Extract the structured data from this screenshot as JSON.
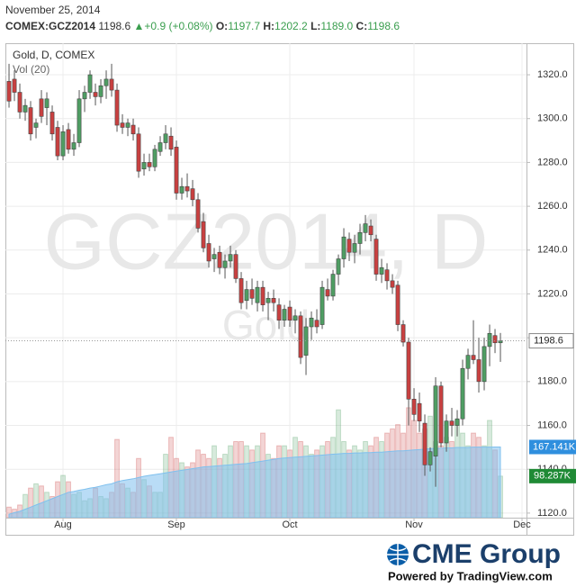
{
  "chart_data": {
    "type": "candlestick",
    "date": "November 25, 2014",
    "header": {
      "symbol": "COMEX:GCZ2014",
      "last": "1198.6",
      "change": "+0.9",
      "change_pct": "(+0.08%)",
      "quote": [
        {
          "label": "O:",
          "value": "1197.7"
        },
        {
          "label": "H:",
          "value": "1202.2"
        },
        {
          "label": "L:",
          "value": "1189.0"
        },
        {
          "label": "C:",
          "value": "1198.6"
        }
      ]
    },
    "title": "Gold, D, COMEX",
    "volume_title": "Vol (20)",
    "watermark": "GCZ2014, D",
    "watermark_sub": "Gold",
    "up_color": "#4f9e63",
    "down_color": "#c94040",
    "volume_ma_color": "#7fc0ee",
    "volume_ma_label": "167.141K",
    "volume_label": "98.287K",
    "grid": true,
    "xlim": [
      -0.67,
      95.83
    ],
    "xticks": [
      {
        "value": 10,
        "label": "Aug"
      },
      {
        "value": 31,
        "label": "Sep"
      },
      {
        "value": 52,
        "label": "Oct"
      },
      {
        "value": 75,
        "label": "Nov"
      },
      {
        "value": 95,
        "label": "Dec"
      }
    ],
    "ylim": [
      1117.9,
      1334.4
    ],
    "yticks": [
      {
        "value": 1120,
        "label": "1120.0"
      },
      {
        "value": 1140,
        "label": "1140.0"
      },
      {
        "value": 1160,
        "label": "1160.0"
      },
      {
        "value": 1180,
        "label": "1180.0"
      },
      {
        "value": 1200,
        "label": "1200.0"
      },
      {
        "value": 1220,
        "label": "1220.0"
      },
      {
        "value": 1240,
        "label": "1240.0"
      },
      {
        "value": 1260,
        "label": "1260.0"
      },
      {
        "value": 1280,
        "label": "1280.0"
      },
      {
        "value": 1300,
        "label": "1300.0"
      },
      {
        "value": 1320,
        "label": "1320.0"
      }
    ],
    "vlim": [
      0,
      330000
    ],
    "open": [
      1317,
      1318,
      1312,
      1303,
      1305,
      1296,
      1309,
      1305,
      1303,
      1296,
      1283,
      1295,
      1286,
      1289,
      1309,
      1312,
      1312,
      1310,
      1315,
      1318,
      1313,
      1298,
      1296,
      1297,
      1293,
      1277,
      1280,
      1278,
      1285,
      1289,
      1292,
      1287,
      1266,
      1269,
      1268,
      1263,
      1253,
      1243,
      1236,
      1239,
      1232,
      1235,
      1238,
      1227,
      1217,
      1222,
      1216,
      1223,
      1216,
      1218,
      1215,
      1208,
      1214,
      1208,
      1210,
      1192,
      1205,
      1208,
      1206,
      1222,
      1219,
      1229,
      1236,
      1245,
      1239,
      1243,
      1248,
      1251,
      1245,
      1229,
      1231,
      1226,
      1224,
      1206,
      1198,
      1172,
      1170,
      1161,
      1142,
      1146,
      1178,
      1152,
      1162,
      1160,
      1163,
      1186,
      1192,
      1190,
      1180,
      1196,
      1201,
      1197.7
    ],
    "high": [
      1325,
      1322,
      1316,
      1309,
      1308,
      1300,
      1313,
      1312,
      1306,
      1299,
      1297,
      1298,
      1293,
      1313,
      1315,
      1322,
      1316,
      1318,
      1322,
      1325,
      1316,
      1302,
      1300,
      1300,
      1296,
      1284,
      1284,
      1288,
      1292,
      1297,
      1296,
      1290,
      1273,
      1275,
      1272,
      1266,
      1257,
      1247,
      1241,
      1242,
      1238,
      1242,
      1240,
      1230,
      1226,
      1227,
      1226,
      1226,
      1221,
      1222,
      1218,
      1215,
      1217,
      1213,
      1212,
      1209,
      1212,
      1213,
      1226,
      1227,
      1231,
      1238,
      1250,
      1248,
      1247,
      1252,
      1256,
      1254,
      1247,
      1236,
      1234,
      1229,
      1226,
      1208,
      1200,
      1177,
      1175,
      1165,
      1150,
      1182,
      1180,
      1165,
      1168,
      1167,
      1190,
      1195,
      1208,
      1200,
      1200,
      1206,
      1204,
      1202.2
    ],
    "low": [
      1305,
      1308,
      1300,
      1299,
      1290,
      1291,
      1298,
      1297,
      1290,
      1281,
      1281,
      1284,
      1283,
      1287,
      1303,
      1309,
      1306,
      1307,
      1309,
      1310,
      1294,
      1293,
      1292,
      1290,
      1273,
      1274,
      1276,
      1276,
      1283,
      1286,
      1283,
      1263,
      1263,
      1264,
      1260,
      1248,
      1239,
      1232,
      1230,
      1229,
      1227,
      1232,
      1225,
      1213,
      1213,
      1215,
      1212,
      1212,
      1208,
      1212,
      1204,
      1205,
      1205,
      1202,
      1188,
      1183,
      1199,
      1202,
      1204,
      1217,
      1217,
      1224,
      1232,
      1235,
      1234,
      1238,
      1244,
      1244,
      1226,
      1225,
      1222,
      1220,
      1203,
      1196,
      1160,
      1162,
      1157,
      1137,
      1139,
      1132,
      1150,
      1148,
      1155,
      1155,
      1160,
      1181,
      1188,
      1175,
      1176,
      1187,
      1193,
      1189
    ],
    "close": [
      1308,
      1312,
      1303,
      1306,
      1293,
      1298,
      1301,
      1309,
      1293,
      1283,
      1294,
      1286,
      1289,
      1309,
      1312,
      1320,
      1310,
      1315,
      1318,
      1313,
      1297,
      1296,
      1298,
      1293,
      1276,
      1280,
      1278,
      1286,
      1289,
      1293,
      1286,
      1266,
      1269,
      1267,
      1263,
      1250,
      1241,
      1235,
      1238,
      1232,
      1235,
      1238,
      1227,
      1216,
      1222,
      1218,
      1223,
      1215,
      1218,
      1216,
      1208,
      1213,
      1208,
      1210,
      1191,
      1205,
      1209,
      1205,
      1223,
      1219,
      1229,
      1236,
      1246,
      1239,
      1243,
      1248,
      1252,
      1247,
      1229,
      1232,
      1226,
      1223,
      1206,
      1198,
      1172,
      1165,
      1162,
      1142,
      1148,
      1178,
      1152,
      1162,
      1160,
      1163,
      1186,
      1192,
      1190,
      1180,
      1196,
      1202,
      1197.7,
      1198.6
    ],
    "volume": [
      25000,
      20000,
      30000,
      55000,
      70000,
      80000,
      75000,
      60000,
      50000,
      85000,
      100000,
      85000,
      55000,
      60000,
      40000,
      45000,
      70000,
      50000,
      45000,
      60000,
      185000,
      80000,
      70000,
      60000,
      140000,
      90000,
      75000,
      60000,
      60000,
      150000,
      190000,
      140000,
      130000,
      120000,
      130000,
      160000,
      150000,
      140000,
      170000,
      140000,
      150000,
      170000,
      180000,
      180000,
      170000,
      160000,
      170000,
      200000,
      150000,
      140000,
      170000,
      170000,
      160000,
      190000,
      180000,
      170000,
      150000,
      160000,
      170000,
      180000,
      190000,
      255000,
      180000,
      160000,
      170000,
      160000,
      180000,
      170000,
      190000,
      180000,
      200000,
      210000,
      220000,
      200000,
      260000,
      230000,
      200000,
      210000,
      240000,
      180000,
      170000,
      190000,
      180000,
      230000,
      200000,
      170000,
      200000,
      190000,
      170000,
      230000,
      160000,
      98287
    ],
    "volume_ma": [
      8000,
      12000,
      15000,
      20000,
      25000,
      30000,
      35000,
      40000,
      45000,
      50000,
      55000,
      60000,
      62000,
      65000,
      67000,
      70000,
      72000,
      75000,
      78000,
      80000,
      85000,
      88000,
      90000,
      92000,
      95000,
      98000,
      100000,
      102000,
      104000,
      106000,
      108000,
      110000,
      112000,
      114000,
      116000,
      118000,
      120000,
      121000,
      122000,
      123000,
      124000,
      125000,
      126000,
      127000,
      128000,
      130000,
      132000,
      134000,
      136000,
      138000,
      140000,
      141000,
      142000,
      143000,
      144000,
      145000,
      146000,
      147000,
      148000,
      149000,
      150000,
      151000,
      152000,
      152000,
      153000,
      153000,
      154000,
      154000,
      155000,
      155000,
      156000,
      157000,
      158000,
      158000,
      159000,
      160000,
      161000,
      162000,
      163000,
      164000,
      164000,
      165000,
      165000,
      166000,
      166000,
      166000,
      167000,
      167000,
      167000,
      167000,
      167200,
      167141
    ]
  },
  "footer": {
    "brand": "CME Group",
    "powered": "Powered by TradingView.com"
  }
}
